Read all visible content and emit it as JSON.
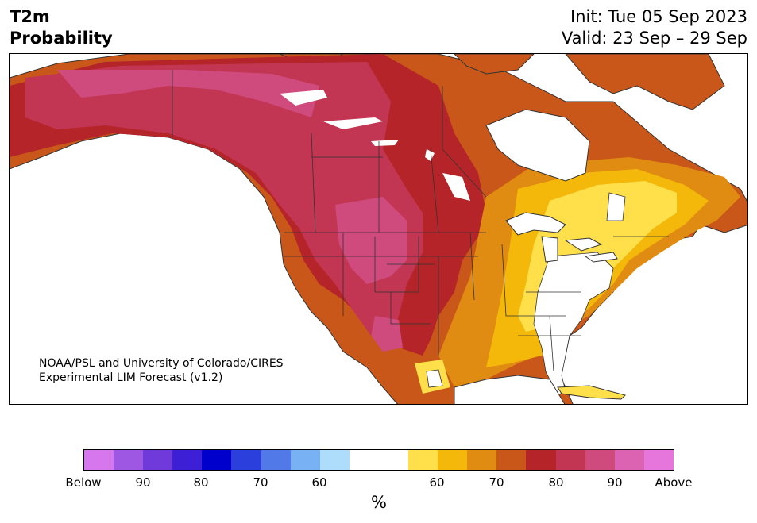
{
  "title": {
    "line1": "T2m",
    "line2": "Probability"
  },
  "dates": {
    "init": "Init: Tue 05 Sep 2023",
    "valid": "Valid: 23 Sep – 29 Sep"
  },
  "credit": {
    "line1": "NOAA/PSL and University of Colorado/CIRES",
    "line2": "Experimental LIM Forecast (v1.2)"
  },
  "colorbar": {
    "colors": [
      "#d677ee",
      "#9e57e3",
      "#6f3ad9",
      "#3d1fd6",
      "#0000cc",
      "#2b3fdc",
      "#5179e8",
      "#78b1f4",
      "#aedcfb",
      "#ffffff",
      "#ffffff",
      "#ffe04b",
      "#f4b80a",
      "#e08b11",
      "#c95719",
      "#b52428",
      "#c23653",
      "#cf4b7e",
      "#dc62b2",
      "#e776dc"
    ],
    "tick_labels": [
      "Below",
      "90",
      "80",
      "70",
      "60",
      "60",
      "70",
      "80",
      "90",
      "Above"
    ],
    "units": "%"
  },
  "map": {
    "category_colors": {
      "above_90": "#cf4b7e",
      "above_80": "#c23653",
      "above_70": "#b52428",
      "above_65": "#c95719",
      "above_60": "#e08b11",
      "above_55": "#f4b80a",
      "above_50": "#ffe04b",
      "near_normal": "#ffffff",
      "below_50": "#aedcfb",
      "border": "#333333"
    }
  }
}
